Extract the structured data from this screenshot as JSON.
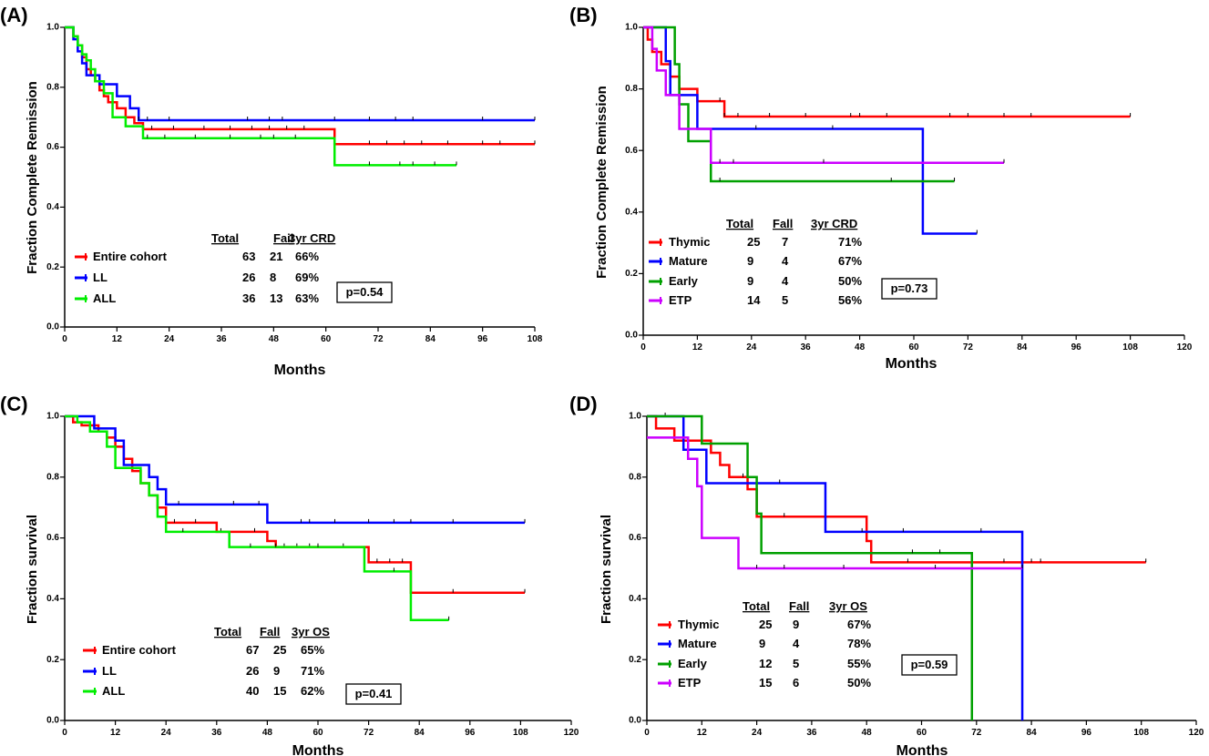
{
  "chart_data": [
    {
      "type": "line",
      "step": true,
      "panel_label": "(A)",
      "xlabel": "Months",
      "ylabel": "Fraction Complete Remission",
      "xlim": [
        0,
        108
      ],
      "ylim": [
        0,
        1
      ],
      "x_ticks": [
        "0",
        "12",
        "24",
        "36",
        "48",
        "60",
        "72",
        "84",
        "96",
        "108"
      ],
      "y_ticks": [
        "0.0",
        "0.2",
        "0.4",
        "0.6",
        "0.8",
        "1.0"
      ],
      "pvalue": "p=0.54",
      "table_headers": [
        "Total",
        "Fail",
        "3yr CRD"
      ],
      "series": [
        {
          "name": "Entire cohort",
          "color": "#ff0000",
          "stats": [
            "63",
            "21",
            "66%"
          ],
          "x": [
            0,
            2,
            3,
            4,
            5,
            6,
            7,
            8,
            9,
            10,
            12,
            14,
            16,
            18,
            62,
            108
          ],
          "y": [
            1.0,
            0.97,
            0.94,
            0.9,
            0.86,
            0.84,
            0.82,
            0.79,
            0.77,
            0.75,
            0.73,
            0.7,
            0.68,
            0.66,
            0.61,
            0.61
          ],
          "censor": [
            20,
            25,
            32,
            38,
            43,
            47,
            51,
            55,
            70,
            74,
            78,
            82,
            88,
            96,
            100,
            108
          ]
        },
        {
          "name": "LL",
          "color": "#0000ff",
          "stats": [
            "26",
            "8",
            "69%"
          ],
          "x": [
            0,
            2,
            3,
            4,
            5,
            8,
            12,
            15,
            17,
            108
          ],
          "y": [
            1.0,
            0.96,
            0.92,
            0.88,
            0.84,
            0.81,
            0.77,
            0.73,
            0.69,
            0.69
          ],
          "censor": [
            17,
            19,
            24,
            42,
            47,
            50,
            62,
            70,
            76,
            80,
            96,
            108
          ]
        },
        {
          "name": "ALL",
          "color": "#00ee00",
          "stats": [
            "36",
            "13",
            "63%"
          ],
          "x": [
            0,
            2,
            3,
            4,
            5,
            6,
            7,
            9,
            11,
            14,
            18,
            62,
            90
          ],
          "y": [
            1.0,
            0.97,
            0.94,
            0.91,
            0.89,
            0.86,
            0.82,
            0.78,
            0.7,
            0.67,
            0.63,
            0.54,
            0.54
          ],
          "censor": [
            19,
            23,
            30,
            38,
            45,
            48,
            53,
            70,
            77,
            80,
            85,
            90
          ]
        }
      ]
    },
    {
      "type": "line",
      "step": true,
      "panel_label": "(B)",
      "xlabel": "Months",
      "ylabel": "Fraction Complete Remission",
      "xlim": [
        0,
        120
      ],
      "ylim": [
        0,
        1
      ],
      "x_ticks": [
        "0",
        "12",
        "24",
        "36",
        "48",
        "60",
        "72",
        "84",
        "96",
        "108",
        "120"
      ],
      "y_ticks": [
        "0.0",
        "0.2",
        "0.4",
        "0.6",
        "0.8",
        "1.0"
      ],
      "pvalue": "p=0.73",
      "table_headers": [
        "Total",
        "Fall",
        "3yr  CRD"
      ],
      "series": [
        {
          "name": "Thymic",
          "color": "#ff0000",
          "stats": [
            "25",
            "7",
            "71%"
          ],
          "x": [
            0,
            1,
            2,
            4,
            6,
            8,
            12,
            17,
            18,
            108
          ],
          "y": [
            1.0,
            0.96,
            0.92,
            0.88,
            0.84,
            0.8,
            0.76,
            0.76,
            0.71,
            0.71
          ],
          "censor": [
            17,
            18,
            21,
            28,
            36,
            46,
            48,
            54,
            68,
            72,
            80,
            86,
            108
          ]
        },
        {
          "name": "Mature",
          "color": "#0000ff",
          "stats": [
            "9",
            "4",
            "67%"
          ],
          "x": [
            0,
            5,
            6,
            10,
            12,
            62,
            74
          ],
          "y": [
            1.0,
            0.89,
            0.78,
            0.78,
            0.67,
            0.33,
            0.33
          ],
          "censor": [
            25,
            42,
            74
          ]
        },
        {
          "name": "Early",
          "color": "#00a000",
          "stats": [
            "9",
            "4",
            "50%"
          ],
          "x": [
            0,
            7,
            8,
            10,
            15,
            69
          ],
          "y": [
            1.0,
            0.88,
            0.75,
            0.63,
            0.5,
            0.5
          ],
          "censor": [
            17,
            55,
            69
          ]
        },
        {
          "name": "ETP",
          "color": "#cc00ff",
          "stats": [
            "14",
            "5",
            "56%"
          ],
          "x": [
            0,
            2,
            3,
            5,
            8,
            15,
            80
          ],
          "y": [
            1.0,
            0.93,
            0.86,
            0.78,
            0.67,
            0.56,
            0.56
          ],
          "censor": [
            17,
            20,
            40,
            80
          ]
        }
      ]
    },
    {
      "type": "line",
      "step": true,
      "panel_label": "(C)",
      "xlabel": "Months",
      "ylabel": "Fraction survival",
      "xlim": [
        0,
        120
      ],
      "ylim": [
        0,
        1
      ],
      "x_ticks": [
        "0",
        "12",
        "24",
        "36",
        "48",
        "60",
        "72",
        "84",
        "96",
        "108",
        "120"
      ],
      "y_ticks": [
        "0.0",
        "0.2",
        "0.4",
        "0.6",
        "0.8",
        "1.0"
      ],
      "pvalue": "p=0.41",
      "table_headers": [
        "Total",
        "Fall",
        "3yr OS"
      ],
      "series": [
        {
          "name": "Entire cohort",
          "color": "#ff0000",
          "stats": [
            "67",
            "25",
            "65%"
          ],
          "x": [
            0,
            2,
            4,
            8,
            10,
            12,
            14,
            16,
            18,
            20,
            22,
            24,
            36,
            48,
            50,
            72,
            82,
            109
          ],
          "y": [
            1.0,
            0.98,
            0.97,
            0.95,
            0.93,
            0.9,
            0.86,
            0.82,
            0.78,
            0.74,
            0.7,
            0.65,
            0.62,
            0.59,
            0.57,
            0.52,
            0.42,
            0.42
          ],
          "censor": [
            26,
            31,
            37,
            45,
            52,
            55,
            58,
            66,
            74,
            77,
            80,
            92,
            109
          ]
        },
        {
          "name": "LL",
          "color": "#0000ff",
          "stats": [
            "26",
            "9",
            "71%"
          ],
          "x": [
            0,
            7,
            12,
            14,
            20,
            22,
            24,
            48,
            109
          ],
          "y": [
            1.0,
            0.96,
            0.92,
            0.84,
            0.8,
            0.76,
            0.71,
            0.65,
            0.65
          ],
          "censor": [
            27,
            40,
            46,
            56,
            58,
            64,
            72,
            78,
            82,
            92,
            109
          ]
        },
        {
          "name": "ALL",
          "color": "#00ee00",
          "stats": [
            "40",
            "15",
            "62%"
          ],
          "x": [
            0,
            3,
            6,
            10,
            12,
            18,
            20,
            22,
            24,
            39,
            71,
            82,
            91
          ],
          "y": [
            1.0,
            0.98,
            0.95,
            0.9,
            0.83,
            0.78,
            0.74,
            0.67,
            0.62,
            0.57,
            0.49,
            0.33,
            0.33
          ],
          "censor": [
            28,
            44,
            50,
            60,
            78,
            91
          ]
        }
      ]
    },
    {
      "type": "line",
      "step": true,
      "panel_label": "(D)",
      "xlabel": "Months",
      "ylabel": "Fraction survival",
      "xlim": [
        0,
        120
      ],
      "ylim": [
        0,
        1
      ],
      "x_ticks": [
        "0",
        "12",
        "24",
        "36",
        "48",
        "60",
        "72",
        "84",
        "96",
        "108",
        "120"
      ],
      "y_ticks": [
        "0.0",
        "0.2",
        "0.4",
        "0.6",
        "0.8",
        "1.0"
      ],
      "pvalue": "p=0.59",
      "table_headers": [
        "Total",
        "Fall",
        "3yr OS"
      ],
      "series": [
        {
          "name": "Thymic",
          "color": "#ff0000",
          "stats": [
            "25",
            "9",
            "67%"
          ],
          "x": [
            0,
            2,
            6,
            14,
            16,
            18,
            22,
            24,
            48,
            49,
            109
          ],
          "y": [
            1.0,
            0.96,
            0.92,
            0.88,
            0.84,
            0.8,
            0.76,
            0.67,
            0.59,
            0.52,
            0.52
          ],
          "censor": [
            21,
            30,
            57,
            78,
            84,
            86,
            109
          ]
        },
        {
          "name": "Mature",
          "color": "#0000ff",
          "stats": [
            "9",
            "4",
            "78%"
          ],
          "x": [
            0,
            7,
            8,
            10,
            13,
            18,
            39,
            82,
            82
          ],
          "y": [
            1.0,
            1.0,
            0.89,
            0.89,
            0.78,
            0.78,
            0.62,
            0.62,
            0.0
          ],
          "censor": [
            4,
            29,
            47,
            56,
            73
          ]
        },
        {
          "name": "Early",
          "color": "#00a000",
          "stats": [
            "12",
            "5",
            "55%"
          ],
          "x": [
            0,
            12,
            17,
            22,
            24,
            25,
            71,
            71
          ],
          "y": [
            1.0,
            0.91,
            0.91,
            0.8,
            0.68,
            0.55,
            0.55,
            0.0
          ],
          "censor": [
            58,
            64
          ]
        },
        {
          "name": "ETP",
          "color": "#cc00ff",
          "stats": [
            "15",
            "6",
            "50%"
          ],
          "x": [
            0,
            7,
            9,
            11,
            12,
            20,
            82
          ],
          "y": [
            0.93,
            0.93,
            0.86,
            0.77,
            0.6,
            0.5,
            0.5
          ],
          "censor": [
            24,
            30,
            43,
            63,
            82
          ]
        }
      ]
    }
  ]
}
